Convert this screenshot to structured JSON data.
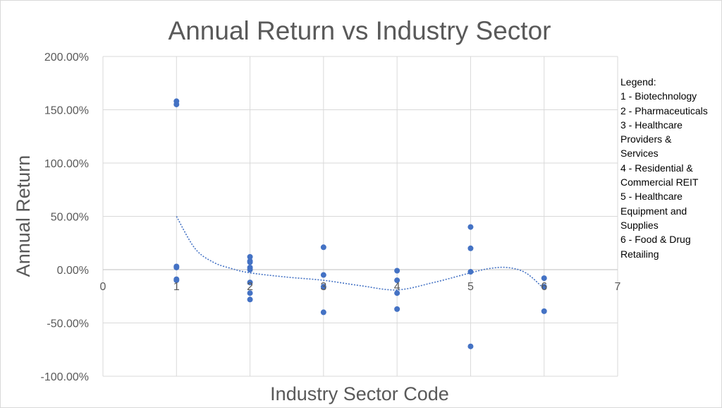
{
  "chart_data": {
    "type": "scatter",
    "title": "Annual Return vs Industry Sector",
    "xlabel": "Industry Sector Code",
    "ylabel": "Annual Return",
    "xlim": [
      0,
      7
    ],
    "ylim": [
      -1.0,
      2.0
    ],
    "x_ticks": [
      "0",
      "1",
      "2",
      "3",
      "4",
      "5",
      "6",
      "7"
    ],
    "y_ticks": [
      "200.00%",
      "150.00%",
      "100.00%",
      "50.00%",
      "0.00%",
      "-50.00%",
      "-100.00%"
    ],
    "grid": true,
    "marker_color": "#4472c4",
    "trendline_color": "#4472c4",
    "trendline": "polynomial",
    "trendline_points": [
      [
        1.0,
        0.5
      ],
      [
        1.25,
        0.2
      ],
      [
        1.5,
        0.07
      ],
      [
        1.75,
        0.01
      ],
      [
        2.0,
        -0.03
      ],
      [
        2.5,
        -0.07
      ],
      [
        3.0,
        -0.1
      ],
      [
        3.5,
        -0.15
      ],
      [
        4.0,
        -0.19
      ],
      [
        4.5,
        -0.12
      ],
      [
        5.0,
        -0.03
      ],
      [
        5.25,
        0.01
      ],
      [
        5.5,
        0.02
      ],
      [
        5.75,
        -0.03
      ],
      [
        6.0,
        -0.18
      ]
    ],
    "points": [
      {
        "x": 1,
        "y": 1.58
      },
      {
        "x": 1,
        "y": 1.55
      },
      {
        "x": 1,
        "y": 0.03
      },
      {
        "x": 1,
        "y": 0.02
      },
      {
        "x": 1,
        "y": -0.09
      },
      {
        "x": 1,
        "y": -0.1
      },
      {
        "x": 2,
        "y": 0.12
      },
      {
        "x": 2,
        "y": 0.08
      },
      {
        "x": 2,
        "y": 0.07
      },
      {
        "x": 2,
        "y": 0.02
      },
      {
        "x": 2,
        "y": 0.0
      },
      {
        "x": 2,
        "y": -0.12
      },
      {
        "x": 2,
        "y": -0.22
      },
      {
        "x": 2,
        "y": -0.28
      },
      {
        "x": 3,
        "y": 0.21
      },
      {
        "x": 3,
        "y": -0.05
      },
      {
        "x": 3,
        "y": -0.16
      },
      {
        "x": 3,
        "y": -0.4
      },
      {
        "x": 4,
        "y": -0.01
      },
      {
        "x": 4,
        "y": -0.1
      },
      {
        "x": 4,
        "y": -0.22
      },
      {
        "x": 4,
        "y": -0.37
      },
      {
        "x": 5,
        "y": 0.4
      },
      {
        "x": 5,
        "y": 0.2
      },
      {
        "x": 5,
        "y": -0.02
      },
      {
        "x": 5,
        "y": -0.72
      },
      {
        "x": 6,
        "y": -0.08
      },
      {
        "x": 6,
        "y": -0.16
      },
      {
        "x": 6,
        "y": -0.39
      }
    ]
  },
  "legend": {
    "heading": "Legend:",
    "items": [
      "1 - Biotechnology",
      "2 - Pharmaceuticals",
      "3 - Healthcare\nProviders &\nServices",
      "4 - Residential &\nCommercial REIT",
      "5 - Healthcare\nEquipment and\nSupplies",
      "6 - Food & Drug\nRetailing"
    ]
  }
}
